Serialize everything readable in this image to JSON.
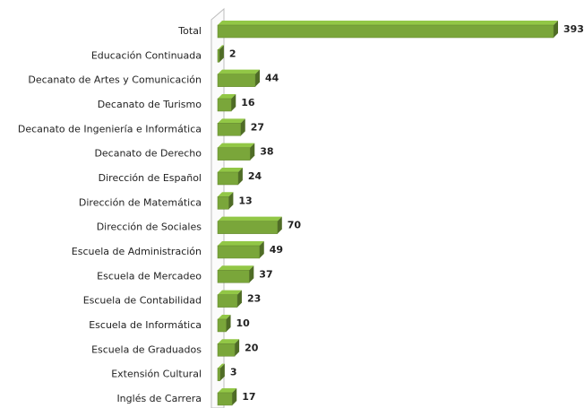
{
  "chart_data": {
    "type": "bar",
    "orientation": "horizontal",
    "categories": [
      "Total",
      "Educación Continuada",
      "Decanato de Artes y Comunicación",
      "Decanato de Turismo",
      "Decanato de Ingeniería e Informática",
      "Decanato de Derecho",
      "Dirección de Español",
      "Dirección de Matemática",
      "Dirección de Sociales",
      "Escuela de Administración",
      "Escuela de Mercadeo",
      "Escuela de Contabilidad",
      "Escuela de Informática",
      "Escuela de Graduados",
      "Extensión Cultural",
      "Inglés de Carrera"
    ],
    "values": [
      393,
      2,
      44,
      16,
      27,
      38,
      24,
      13,
      70,
      49,
      37,
      23,
      10,
      20,
      3,
      17
    ],
    "color": "#7aa63a"
  }
}
